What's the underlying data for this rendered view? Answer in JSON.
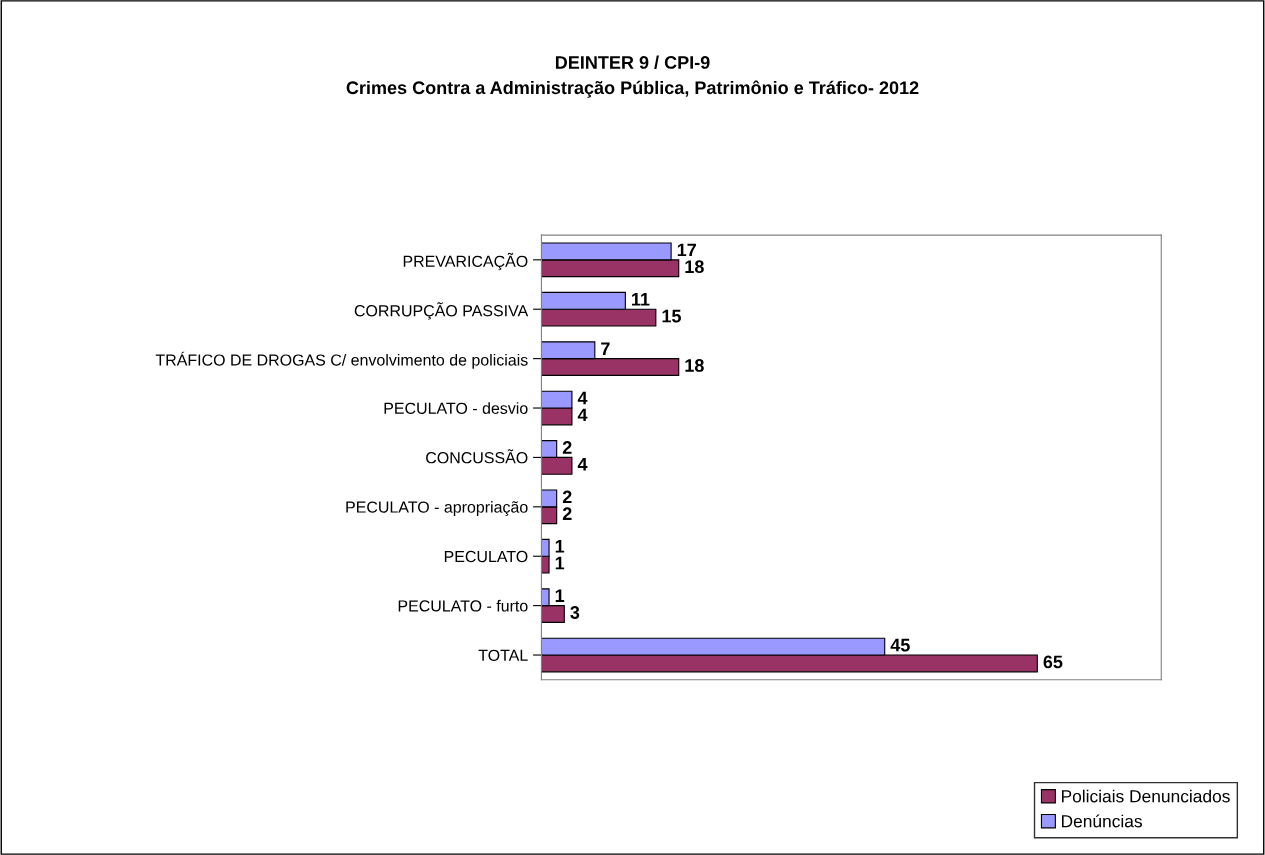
{
  "chart_data": {
    "type": "bar",
    "orientation": "horizontal",
    "title": "DEINTER 9 / CPI-9\nCrimes Contra a Administração Pública, Patrimônio e Tráfico- 2012",
    "categories": [
      "PREVARICAÇÃO",
      "CORRUPÇÃO PASSIVA",
      "TRÁFICO DE DROGAS C/ envolvimento de policiais",
      "PECULATO - desvio",
      "CONCUSSÃO",
      "PECULATO - apropriação",
      "PECULATO",
      "PECULATO - furto",
      "TOTAL"
    ],
    "series": [
      {
        "name": "Policiais Denunciados",
        "color": "#993366",
        "values": [
          18,
          15,
          18,
          4,
          4,
          2,
          1,
          3,
          65
        ]
      },
      {
        "name": "Denúncias",
        "color": "#9999ff",
        "values": [
          17,
          11,
          7,
          4,
          2,
          2,
          1,
          1,
          45
        ]
      }
    ],
    "data_labels": true,
    "tick_labels": "y",
    "grid": false,
    "legend": "bottom right"
  }
}
